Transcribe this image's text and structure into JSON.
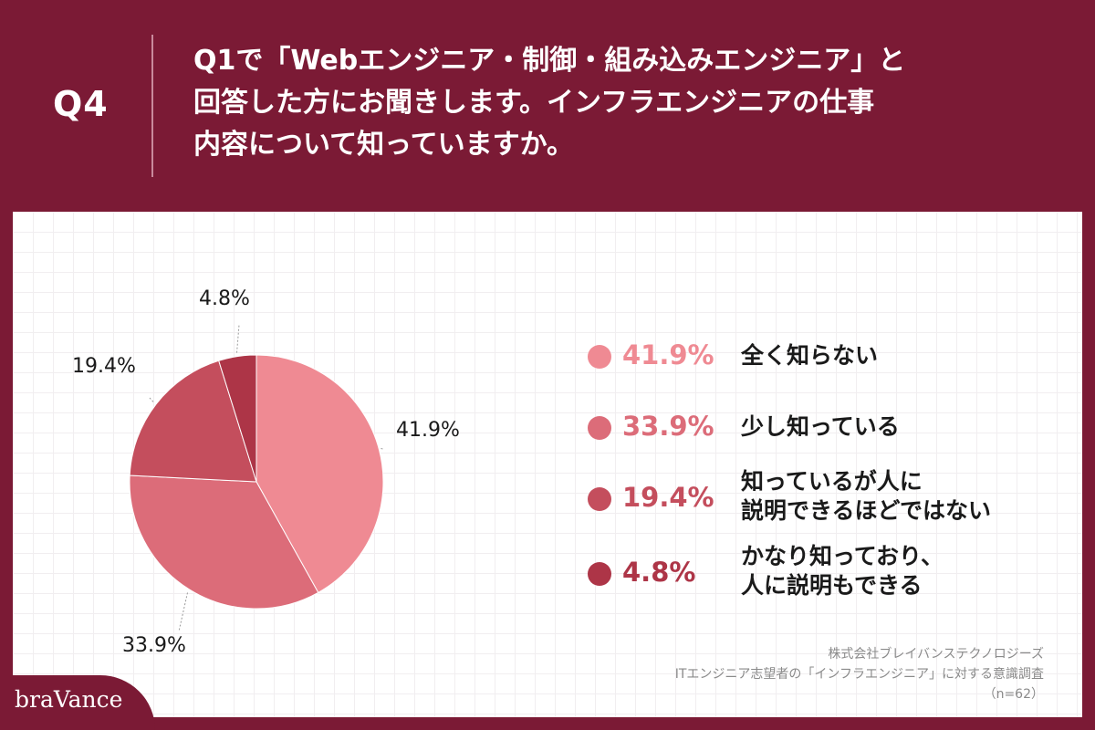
{
  "header": {
    "number": "Q4",
    "question_lines": [
      "Q1で「Webエンジニア・制御・組み込みエンジニア」と",
      "回答した方にお聞きします。インフラエンジニアの仕事",
      "内容について知っていますか。"
    ]
  },
  "chart_data": {
    "type": "pie",
    "start_angle_deg": 0,
    "direction": "clockwise",
    "slices": [
      {
        "label": "全く知らない",
        "legend_lines": [
          "全く知らない"
        ],
        "value": 41.9,
        "display": "41.9%",
        "color": "#ef8a93"
      },
      {
        "label": "少し知っている",
        "legend_lines": [
          "少し知っている"
        ],
        "value": 33.9,
        "display": "33.9%",
        "color": "#dc6c79"
      },
      {
        "label": "知っているが人に説明できるほどではない",
        "legend_lines": [
          "知っているが人に",
          "説明できるほどではない"
        ],
        "value": 19.4,
        "display": "19.4%",
        "color": "#c44e5d"
      },
      {
        "label": "かなり知っており、人に説明もできる",
        "legend_lines": [
          "かなり知っており、",
          "人に説明もできる"
        ],
        "value": 4.8,
        "display": "4.8%",
        "color": "#ad3547"
      }
    ]
  },
  "source": {
    "company": "株式会社ブレイバンステクノロジーズ",
    "survey": "ITエンジニア志望者の「インフラエンジニア」に対する意識調査",
    "sample": "（n=62）"
  },
  "brand": {
    "logo_text": "braVance"
  }
}
